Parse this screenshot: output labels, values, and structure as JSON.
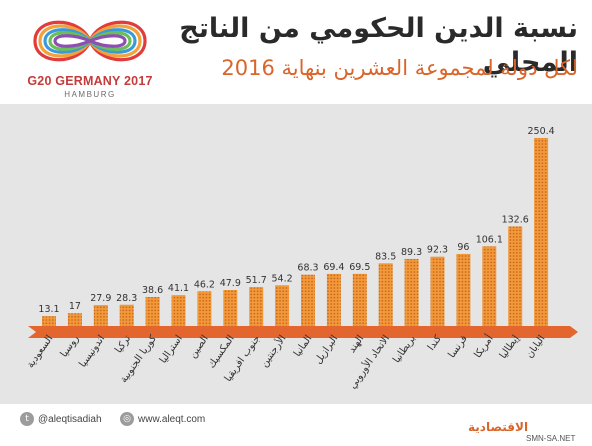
{
  "header": {
    "title": "نسبة الدين الحكومي من الناتج المحلي",
    "subtitle": "لكل دولة لمجموعة العشرين بنهاية 2016",
    "logo_text": "G20 GERMANY 2017",
    "logo_sub": "HAMBURG"
  },
  "colors": {
    "bar": "#f29a3a",
    "bar_dots": "#c8631d",
    "baseline": "#e4662f",
    "title": "#2a2a2a",
    "subtitle": "#d9652b",
    "background": "#e5e5e5"
  },
  "footer": {
    "twitter_icon": "twitter-icon",
    "twitter": "@aleqtisadiah",
    "web_icon": "globe-icon",
    "website": "www.aleqt.com",
    "brand": "الاقتصادية",
    "credit": "SMN-SA.NET"
  },
  "chart_data": {
    "type": "bar",
    "title": "نسبة الدين الحكومي من الناتج المحلي",
    "subtitle": "لكل دولة لمجموعة العشرين بنهاية 2016",
    "categories": [
      "السعودية",
      "روسيا",
      "اندونيسيا",
      "تركيا",
      "كوريا الجنوبية",
      "استراليا",
      "الصين",
      "المكسيك",
      "جنوب افريقيا",
      "الأرجنتين",
      "المانيا",
      "البرازيل",
      "الهند",
      "الاتحاد الأوروبي",
      "بريطانيا",
      "كندا",
      "فرنسا",
      "أمريكا",
      "إيطاليا",
      "اليابان"
    ],
    "values": [
      13.1,
      17,
      27.9,
      28.3,
      38.6,
      41.1,
      46.2,
      47.9,
      51.7,
      54.2,
      68.3,
      69.4,
      69.5,
      83.5,
      89.3,
      92.3,
      96,
      106.1,
      132.6,
      250.4
    ],
    "value_labels": [
      "13.1",
      "17",
      "27.9",
      "28.3",
      "38.6",
      "41.1",
      "46.2",
      "47.9",
      "51.7",
      "54.2",
      "68.3",
      "69.4",
      "69.5",
      "83.5",
      "89.3",
      "92.3",
      "96",
      "106.1",
      "132.6",
      "250.4"
    ],
    "ylim": [
      0,
      250.4
    ],
    "grid": false,
    "legend": "none"
  }
}
